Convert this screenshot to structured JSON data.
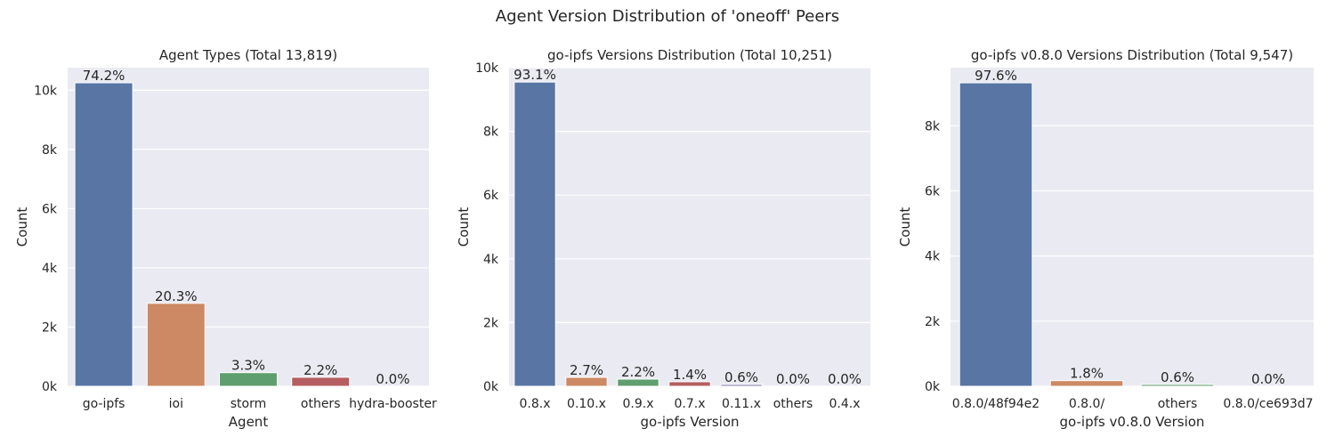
{
  "figure": {
    "suptitle": "Agent Version Distribution of 'oneoff' Peers"
  },
  "colors": {
    "background": "#eaeaf2",
    "grid": "#ffffff",
    "text": "#262626",
    "palette": [
      "#5875a4",
      "#cc8963",
      "#5f9e6e",
      "#b55d60",
      "#857aab",
      "#8d7866",
      "#d095bf"
    ]
  },
  "chart_data": [
    {
      "type": "bar",
      "title": "Agent Types (Total 13,819)",
      "xlabel": "Agent",
      "ylabel": "Count",
      "categories": [
        "go-ipfs",
        "ioi",
        "storm",
        "others",
        "hydra-booster"
      ],
      "values": [
        10251,
        2802,
        459,
        304,
        3
      ],
      "labels": [
        "74.2%",
        "20.3%",
        "3.3%",
        "2.2%",
        "0.0%"
      ],
      "ylim": [
        0,
        10763
      ],
      "yticks": [
        0,
        2000,
        4000,
        6000,
        8000,
        10000
      ],
      "ytick_labels": [
        "0k",
        "2k",
        "4k",
        "6k",
        "8k",
        "10k"
      ],
      "grid": true
    },
    {
      "type": "bar",
      "title": "go-ipfs Versions Distribution (Total 10,251)",
      "xlabel": "go-ipfs Version",
      "ylabel": "Count",
      "categories": [
        "0.8.x",
        "0.10.x",
        "0.9.x",
        "0.7.x",
        "0.11.x",
        "others",
        "0.4.x"
      ],
      "values": [
        9547,
        279,
        224,
        141,
        57,
        2,
        1
      ],
      "labels": [
        "93.1%",
        "2.7%",
        "2.2%",
        "1.4%",
        "0.6%",
        "0.0%",
        "0.0%"
      ],
      "ylim": [
        0,
        10000
      ],
      "yticks": [
        0,
        2000,
        4000,
        6000,
        8000,
        10000
      ],
      "ytick_labels": [
        "0k",
        "2k",
        "4k",
        "6k",
        "8k",
        "10k"
      ],
      "grid": true
    },
    {
      "type": "bar",
      "title": "go-ipfs v0.8.0 Versions Distribution (Total 9,547)",
      "xlabel": "go-ipfs v0.8.0 Version",
      "ylabel": "Count",
      "categories": [
        "0.8.0/48f94e2",
        "0.8.0/",
        "others",
        "0.8.0/ce693d7"
      ],
      "values": [
        9318,
        172,
        55,
        2
      ],
      "labels": [
        "97.6%",
        "1.8%",
        "0.6%",
        "0.0%"
      ],
      "ylim": [
        0,
        9784
      ],
      "yticks": [
        0,
        2000,
        4000,
        6000,
        8000
      ],
      "ytick_labels": [
        "0k",
        "2k",
        "4k",
        "6k",
        "8k"
      ],
      "grid": true
    }
  ]
}
